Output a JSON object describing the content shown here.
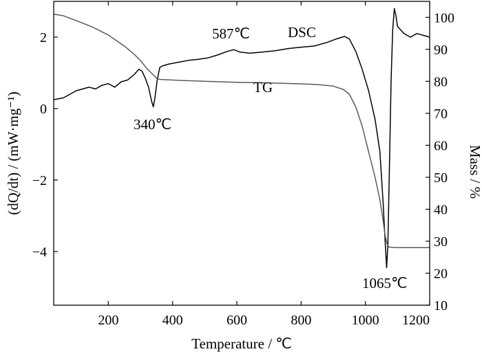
{
  "chart_data": {
    "type": "line",
    "xlabel": "Temperature / ℃",
    "ylabel_left": "(dQ/dt) / (mW·mg⁻¹)",
    "ylabel_right": "Mass / %",
    "xlim": [
      30,
      1200
    ],
    "ylim_left": [
      -5.5,
      3.0
    ],
    "ylim_right": [
      10,
      105
    ],
    "xticks": [
      200,
      400,
      600,
      800,
      1000,
      1200
    ],
    "yticks_left": [
      -4,
      -2,
      0,
      2
    ],
    "yticks_left_labels": [
      "−4",
      "−2",
      "0",
      "2"
    ],
    "yticks_right": [
      10,
      20,
      30,
      40,
      50,
      60,
      70,
      80,
      90,
      100
    ],
    "grid": false,
    "series": [
      {
        "name": "DSC",
        "axis": "left",
        "color": "#000000",
        "x": [
          30,
          60,
          100,
          140,
          160,
          180,
          200,
          220,
          240,
          260,
          280,
          295,
          305,
          315,
          325,
          335,
          340,
          345,
          352,
          360,
          370,
          390,
          420,
          450,
          480,
          510,
          540,
          570,
          590,
          610,
          640,
          680,
          720,
          760,
          800,
          840,
          880,
          910,
          935,
          950,
          970,
          990,
          1010,
          1030,
          1045,
          1055,
          1062,
          1066,
          1070,
          1075,
          1080,
          1085,
          1090,
          1095,
          1100,
          1110,
          1120,
          1140,
          1160,
          1180,
          1200
        ],
        "y": [
          0.25,
          0.3,
          0.5,
          0.6,
          0.55,
          0.65,
          0.7,
          0.6,
          0.75,
          0.8,
          0.95,
          1.1,
          1.05,
          0.85,
          0.6,
          0.2,
          0.05,
          0.3,
          0.8,
          1.15,
          1.2,
          1.25,
          1.3,
          1.35,
          1.38,
          1.42,
          1.5,
          1.6,
          1.65,
          1.58,
          1.55,
          1.58,
          1.62,
          1.68,
          1.72,
          1.75,
          1.85,
          1.95,
          2.02,
          1.95,
          1.6,
          1.1,
          0.5,
          -0.3,
          -1.2,
          -2.6,
          -3.8,
          -4.45,
          -3.8,
          -1.5,
          0.8,
          2.2,
          2.8,
          2.6,
          2.3,
          2.2,
          2.1,
          2.0,
          2.1,
          2.05,
          2.0
        ]
      },
      {
        "name": "TG",
        "axis": "right",
        "color": "#5a5a5a",
        "x": [
          30,
          60,
          100,
          150,
          200,
          250,
          280,
          300,
          320,
          340,
          350,
          360,
          380,
          420,
          500,
          600,
          700,
          800,
          850,
          900,
          930,
          950,
          970,
          990,
          1010,
          1030,
          1045,
          1055,
          1062,
          1068,
          1073,
          1080,
          1100,
          1150,
          1200
        ],
        "y": [
          101,
          100.5,
          99,
          97,
          94.5,
          91,
          88.5,
          86.5,
          84,
          82,
          81,
          80.6,
          80.5,
          80.3,
          80,
          79.7,
          79.5,
          79.2,
          79,
          78.5,
          77.5,
          76,
          72,
          66,
          58,
          50,
          43,
          36.5,
          31.5,
          29,
          28.2,
          28.1,
          28.0,
          28.0,
          28.0
        ]
      }
    ]
  },
  "annotations": {
    "dsc_label": "DSC",
    "tg_label": "TG",
    "peak_340": "340℃",
    "peak_587": "587℃",
    "peak_1065": "1065℃"
  }
}
